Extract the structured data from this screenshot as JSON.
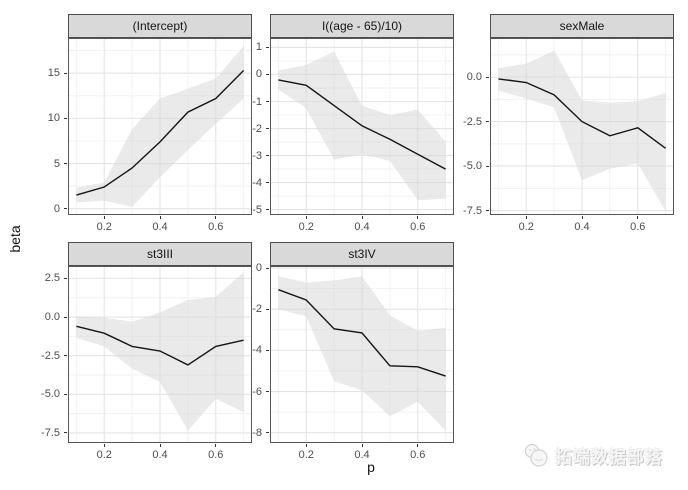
{
  "figure": {
    "watermark": {
      "text": "拓端数据部落",
      "icon": "cat-logo-icon"
    },
    "colors": {
      "strip_bg": "#d9d9d9",
      "strip_border": "#4e4e4e",
      "panel_border": "#565656",
      "grid_major": "#e4e4e4",
      "grid_minor": "#f1f1f1",
      "ribbon": "#d6d6d6",
      "line": "#151515",
      "tick_mark": "#333333",
      "tick_label": "#4d4d4d"
    }
  },
  "chart_data": {
    "type": "line",
    "subtype": "faceted line plots with gray confidence ribbons (ggplot2 style, free y scales)",
    "xlabel": "p",
    "ylabel": "beta",
    "legend": "none",
    "grid": "major and minor light-gray gridlines on white panels",
    "x": [
      0.1,
      0.2,
      0.3,
      0.4,
      0.5,
      0.6,
      0.7
    ],
    "xlim": [
      0.07,
      0.73
    ],
    "xticks": {
      "values": [
        0.2,
        0.4,
        0.6
      ],
      "labels": [
        "0.2",
        "0.4",
        "0.6"
      ]
    },
    "facets": [
      {
        "title": "(Intercept)",
        "ylim": [
          -0.7,
          18.9
        ],
        "yticks": {
          "values": [
            15,
            10,
            5,
            0
          ],
          "labels": [
            "15",
            "10",
            "5",
            "0"
          ]
        },
        "y": [
          1.5,
          2.4,
          4.5,
          7.4,
          10.7,
          12.2,
          15.3
        ],
        "upper": [
          2.3,
          2.9,
          8.8,
          12.2,
          13.3,
          14.4,
          18.0
        ],
        "lower": [
          0.7,
          0.9,
          0.2,
          3.5,
          6.5,
          9.4,
          12.2
        ]
      },
      {
        "title": "I((age - 65)/10)",
        "ylim": [
          -5.2,
          1.35
        ],
        "yticks": {
          "values": [
            1,
            0,
            -1,
            -2,
            -3,
            -4,
            -5
          ],
          "labels": [
            "1",
            "0",
            "-1",
            "-2",
            "-3",
            "-4",
            "-5"
          ]
        },
        "y": [
          -0.2,
          -0.4,
          -1.15,
          -1.9,
          -2.4,
          -2.95,
          -3.5
        ],
        "upper": [
          0.15,
          0.35,
          0.85,
          -1.15,
          -1.5,
          -1.3,
          -2.5
        ],
        "lower": [
          -0.55,
          -1.25,
          -3.15,
          -2.95,
          -3.2,
          -4.65,
          -4.6
        ]
      },
      {
        "title": "sexMale",
        "ylim": [
          -7.75,
          2.2
        ],
        "yticks": {
          "values": [
            0,
            -2.5,
            -5,
            -7.5
          ],
          "labels": [
            "0.0",
            "-2.5",
            "-5.0",
            "-7.5"
          ]
        },
        "y": [
          -0.1,
          -0.3,
          -1.0,
          -2.5,
          -3.3,
          -2.85,
          -4.0
        ],
        "upper": [
          0.5,
          0.75,
          1.5,
          -1.3,
          -1.45,
          -1.35,
          -0.9
        ],
        "lower": [
          -0.75,
          -1.2,
          -1.7,
          -5.8,
          -5.15,
          -4.85,
          -7.55
        ]
      },
      {
        "title": "st3III",
        "ylim": [
          -8.15,
          3.3
        ],
        "yticks": {
          "values": [
            2.5,
            0,
            -2.5,
            -5,
            -7.5
          ],
          "labels": [
            "2.5",
            "0.0",
            "-2.5",
            "-5.0",
            "-7.5"
          ]
        },
        "y": [
          -0.6,
          -1.05,
          -1.9,
          -2.2,
          -3.1,
          -1.9,
          -1.5
        ],
        "upper": [
          0.05,
          -0.05,
          -0.3,
          0.3,
          1.1,
          1.3,
          2.9
        ],
        "lower": [
          -1.35,
          -1.9,
          -3.35,
          -4.2,
          -7.35,
          -5.3,
          -6.15
        ]
      },
      {
        "title": "st3IV",
        "ylim": [
          -8.5,
          0.1
        ],
        "yticks": {
          "values": [
            0,
            -2,
            -4,
            -6,
            -8
          ],
          "labels": [
            "0",
            "-2",
            "-4",
            "-6",
            "-8"
          ]
        },
        "y": [
          -1.05,
          -1.55,
          -2.95,
          -3.15,
          -4.75,
          -4.8,
          -5.25
        ],
        "upper": [
          -0.4,
          -0.7,
          -0.6,
          -0.4,
          -2.3,
          -3.05,
          -2.9
        ],
        "lower": [
          -2.0,
          -2.35,
          -5.5,
          -5.95,
          -7.2,
          -6.5,
          -7.9
        ]
      }
    ]
  }
}
